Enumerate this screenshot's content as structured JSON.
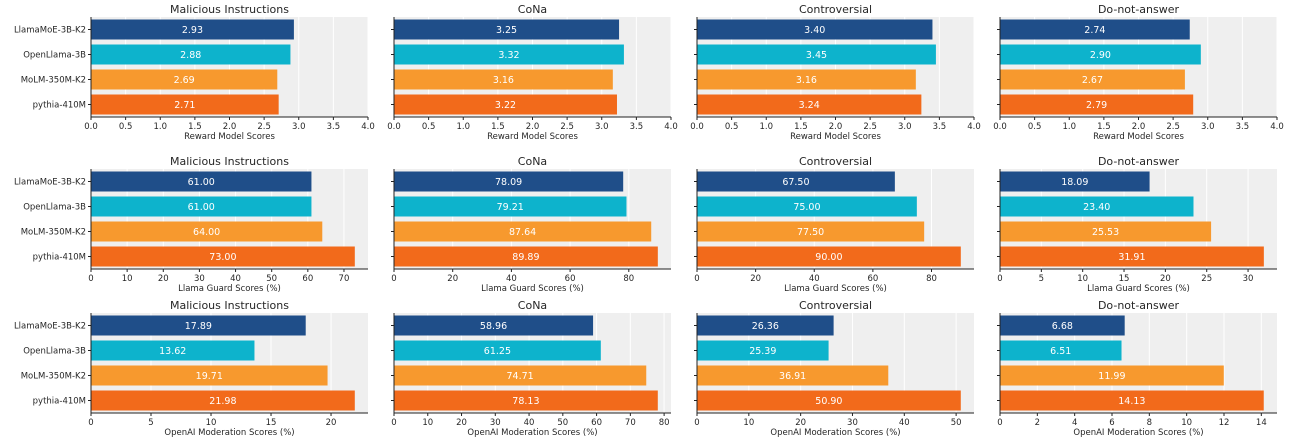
{
  "chart_data": [
    {
      "type": "bar",
      "orientation": "horizontal",
      "title": "Malicious Instructions",
      "xlabel": "Reward Model Scores",
      "categories": [
        "LlamaMoE-3B-K2",
        "OpenLlama-3B",
        "MoLM-350M-K2",
        "pythia-410M"
      ],
      "values": [
        2.93,
        2.88,
        2.69,
        2.71
      ],
      "value_labels": [
        "2.93",
        "2.88",
        "2.69",
        "2.71"
      ],
      "xlim": [
        0,
        4.0
      ],
      "xticks": [
        0,
        0.5,
        1.0,
        1.5,
        2.0,
        2.5,
        3.0,
        3.5,
        4.0
      ],
      "xtick_labels": [
        "0.0",
        "0.5",
        "1.0",
        "1.5",
        "2.0",
        "2.5",
        "3.0",
        "3.5",
        "4.0"
      ],
      "grid": "x",
      "show_categories": true
    },
    {
      "type": "bar",
      "orientation": "horizontal",
      "title": "CoNa",
      "xlabel": "Reward Model Scores",
      "categories": [
        "LlamaMoE-3B-K2",
        "OpenLlama-3B",
        "MoLM-350M-K2",
        "pythia-410M"
      ],
      "values": [
        3.25,
        3.32,
        3.16,
        3.22
      ],
      "value_labels": [
        "3.25",
        "3.32",
        "3.16",
        "3.22"
      ],
      "xlim": [
        0,
        4.0
      ],
      "xticks": [
        0,
        0.5,
        1.0,
        1.5,
        2.0,
        2.5,
        3.0,
        3.5,
        4.0
      ],
      "xtick_labels": [
        "0.0",
        "0.5",
        "1.0",
        "1.5",
        "2.0",
        "2.5",
        "3.0",
        "3.5",
        "4.0"
      ],
      "grid": "x",
      "show_categories": false
    },
    {
      "type": "bar",
      "orientation": "horizontal",
      "title": "Controversial",
      "xlabel": "Reward Model Scores",
      "categories": [
        "LlamaMoE-3B-K2",
        "OpenLlama-3B",
        "MoLM-350M-K2",
        "pythia-410M"
      ],
      "values": [
        3.4,
        3.45,
        3.16,
        3.24
      ],
      "value_labels": [
        "3.40",
        "3.45",
        "3.16",
        "3.24"
      ],
      "xlim": [
        0,
        4.0
      ],
      "xticks": [
        0,
        0.5,
        1.0,
        1.5,
        2.0,
        2.5,
        3.0,
        3.5,
        4.0
      ],
      "xtick_labels": [
        "0.0",
        "0.5",
        "1.0",
        "1.5",
        "2.0",
        "2.5",
        "3.0",
        "3.5",
        "4.0"
      ],
      "grid": "x",
      "show_categories": false
    },
    {
      "type": "bar",
      "orientation": "horizontal",
      "title": "Do-not-answer",
      "xlabel": "Reward Model Scores",
      "categories": [
        "LlamaMoE-3B-K2",
        "OpenLlama-3B",
        "MoLM-350M-K2",
        "pythia-410M"
      ],
      "values": [
        2.74,
        2.9,
        2.67,
        2.79
      ],
      "value_labels": [
        "2.74",
        "2.90",
        "2.67",
        "2.79"
      ],
      "xlim": [
        0,
        4.0
      ],
      "xticks": [
        0,
        0.5,
        1.0,
        1.5,
        2.0,
        2.5,
        3.0,
        3.5,
        4.0
      ],
      "xtick_labels": [
        "0.0",
        "0.5",
        "1.0",
        "1.5",
        "2.0",
        "2.5",
        "3.0",
        "3.5",
        "4.0"
      ],
      "grid": "x",
      "show_categories": false
    },
    {
      "type": "bar",
      "orientation": "horizontal",
      "title": "Malicious Instructions",
      "xlabel": "Llama Guard Scores (%)",
      "categories": [
        "LlamaMoE-3B-K2",
        "OpenLlama-3B",
        "MoLM-350M-K2",
        "pythia-410M"
      ],
      "values": [
        61.0,
        61.0,
        64.0,
        73.0
      ],
      "value_labels": [
        "61.00",
        "61.00",
        "64.00",
        "73.00"
      ],
      "xlim": [
        0,
        76.65
      ],
      "xticks": [
        0,
        10,
        20,
        30,
        40,
        50,
        60,
        70
      ],
      "xtick_labels": [
        "0",
        "10",
        "20",
        "30",
        "40",
        "50",
        "60",
        "70"
      ],
      "grid": "x",
      "show_categories": true
    },
    {
      "type": "bar",
      "orientation": "horizontal",
      "title": "CoNa",
      "xlabel": "Llama Guard Scores (%)",
      "categories": [
        "LlamaMoE-3B-K2",
        "OpenLlama-3B",
        "MoLM-350M-K2",
        "pythia-410M"
      ],
      "values": [
        78.09,
        79.21,
        87.64,
        89.89
      ],
      "value_labels": [
        "78.09",
        "79.21",
        "87.64",
        "89.89"
      ],
      "xlim": [
        0,
        94.38
      ],
      "xticks": [
        0,
        20,
        40,
        60,
        80
      ],
      "xtick_labels": [
        "0",
        "20",
        "40",
        "60",
        "80"
      ],
      "grid": "x",
      "show_categories": false
    },
    {
      "type": "bar",
      "orientation": "horizontal",
      "title": "Controversial",
      "xlabel": "Llama Guard Scores (%)",
      "categories": [
        "LlamaMoE-3B-K2",
        "OpenLlama-3B",
        "MoLM-350M-K2",
        "pythia-410M"
      ],
      "values": [
        67.5,
        75.0,
        77.5,
        90.0
      ],
      "value_labels": [
        "67.50",
        "75.00",
        "77.50",
        "90.00"
      ],
      "xlim": [
        0,
        94.5
      ],
      "xticks": [
        0,
        20,
        40,
        60,
        80
      ],
      "xtick_labels": [
        "0",
        "20",
        "40",
        "60",
        "80"
      ],
      "grid": "x",
      "show_categories": false
    },
    {
      "type": "bar",
      "orientation": "horizontal",
      "title": "Do-not-answer",
      "xlabel": "Llama Guard Scores (%)",
      "categories": [
        "LlamaMoE-3B-K2",
        "OpenLlama-3B",
        "MoLM-350M-K2",
        "pythia-410M"
      ],
      "values": [
        18.09,
        23.4,
        25.53,
        31.91
      ],
      "value_labels": [
        "18.09",
        "23.40",
        "25.53",
        "31.91"
      ],
      "xlim": [
        0,
        33.5
      ],
      "xticks": [
        0,
        5,
        10,
        15,
        20,
        25,
        30
      ],
      "xtick_labels": [
        "0",
        "5",
        "10",
        "15",
        "20",
        "25",
        "30"
      ],
      "grid": "x",
      "show_categories": false
    },
    {
      "type": "bar",
      "orientation": "horizontal",
      "title": "Malicious Instructions",
      "xlabel": "OpenAI Moderation Scores (%)",
      "categories": [
        "LlamaMoE-3B-K2",
        "OpenLlama-3B",
        "MoLM-350M-K2",
        "pythia-410M"
      ],
      "values": [
        17.89,
        13.62,
        19.71,
        21.98
      ],
      "value_labels": [
        "17.89",
        "13.62",
        "19.71",
        "21.98"
      ],
      "xlim": [
        0,
        23.08
      ],
      "xticks": [
        0,
        5,
        10,
        15,
        20
      ],
      "xtick_labels": [
        "0",
        "5",
        "10",
        "15",
        "20"
      ],
      "grid": "x",
      "show_categories": true
    },
    {
      "type": "bar",
      "orientation": "horizontal",
      "title": "CoNa",
      "xlabel": "OpenAI Moderation Scores (%)",
      "categories": [
        "LlamaMoE-3B-K2",
        "OpenLlama-3B",
        "MoLM-350M-K2",
        "pythia-410M"
      ],
      "values": [
        58.96,
        61.25,
        74.71,
        78.13
      ],
      "value_labels": [
        "58.96",
        "61.25",
        "74.71",
        "78.13"
      ],
      "xlim": [
        0,
        82.04
      ],
      "xticks": [
        0,
        10,
        20,
        30,
        40,
        50,
        60,
        70,
        80
      ],
      "xtick_labels": [
        "0",
        "10",
        "20",
        "30",
        "40",
        "50",
        "60",
        "70",
        "80"
      ],
      "grid": "x",
      "show_categories": false
    },
    {
      "type": "bar",
      "orientation": "horizontal",
      "title": "Controversial",
      "xlabel": "OpenAI Moderation Scores (%)",
      "categories": [
        "LlamaMoE-3B-K2",
        "OpenLlama-3B",
        "MoLM-350M-K2",
        "pythia-410M"
      ],
      "values": [
        26.36,
        25.39,
        36.91,
        50.9
      ],
      "value_labels": [
        "26.36",
        "25.39",
        "36.91",
        "50.90"
      ],
      "xlim": [
        0,
        53.45
      ],
      "xticks": [
        0,
        10,
        20,
        30,
        40,
        50
      ],
      "xtick_labels": [
        "0",
        "10",
        "20",
        "30",
        "40",
        "50"
      ],
      "grid": "x",
      "show_categories": false
    },
    {
      "type": "bar",
      "orientation": "horizontal",
      "title": "Do-not-answer",
      "xlabel": "OpenAI Moderation Scores (%)",
      "categories": [
        "LlamaMoE-3B-K2",
        "OpenLlama-3B",
        "MoLM-350M-K2",
        "pythia-410M"
      ],
      "values": [
        6.68,
        6.51,
        11.99,
        14.13
      ],
      "value_labels": [
        "6.68",
        "6.51",
        "11.99",
        "14.13"
      ],
      "xlim": [
        0,
        14.84
      ],
      "xticks": [
        0,
        2,
        4,
        6,
        8,
        10,
        12,
        14
      ],
      "xtick_labels": [
        "0",
        "2",
        "4",
        "6",
        "8",
        "10",
        "12",
        "14"
      ],
      "grid": "x",
      "show_categories": false
    }
  ],
  "colors": {
    "bars": [
      "#1f4e89",
      "#0db3cc",
      "#f7992e",
      "#f26a1b"
    ],
    "plot_background": "#efefef",
    "gridline": "#ffffff",
    "axis": "#222222",
    "bar_label_text": "#ffffff"
  }
}
